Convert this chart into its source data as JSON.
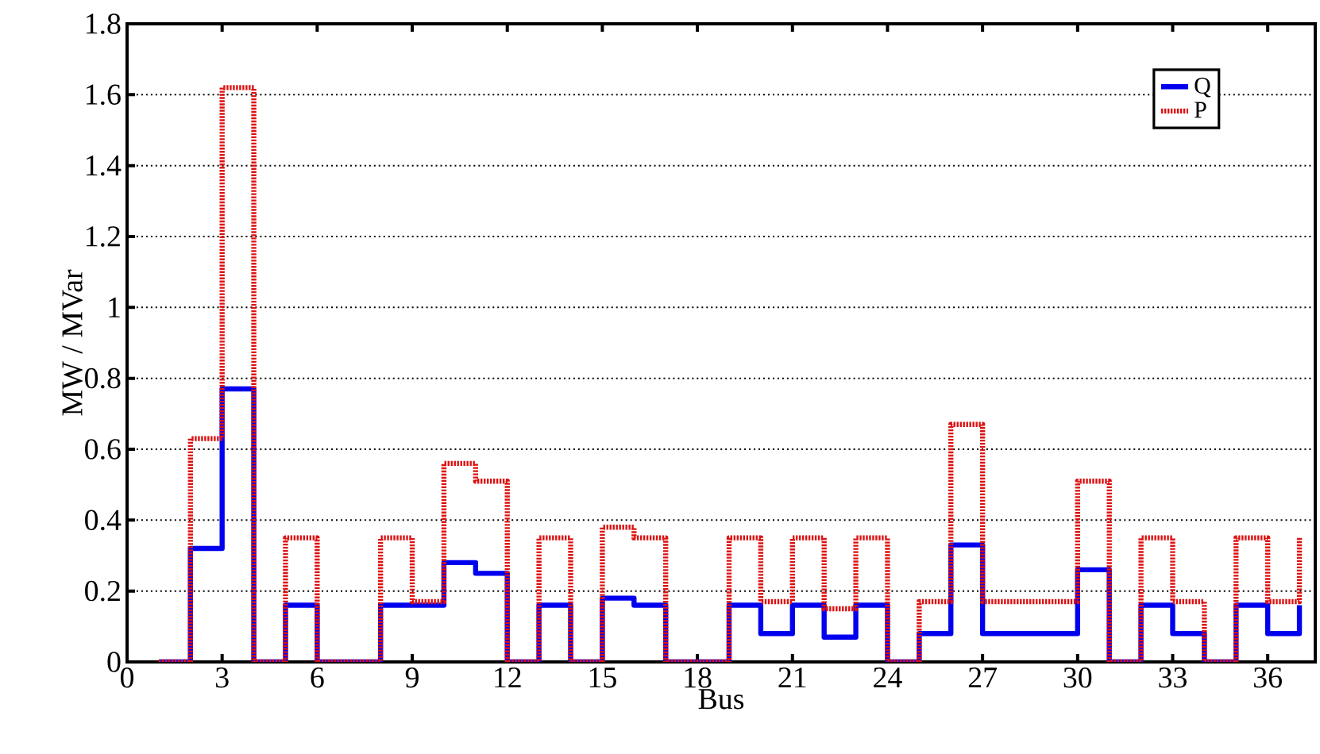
{
  "chart_data": {
    "type": "step",
    "xlabel": "Bus",
    "ylabel": "MW / MVar",
    "x": [
      1,
      2,
      3,
      4,
      5,
      6,
      7,
      8,
      9,
      10,
      11,
      12,
      13,
      14,
      15,
      16,
      17,
      18,
      19,
      20,
      21,
      22,
      23,
      24,
      25,
      26,
      27,
      28,
      29,
      30,
      31,
      32,
      33,
      34,
      35,
      36,
      37
    ],
    "series": [
      {
        "name": "Q",
        "color": "#0000ee",
        "line_style": "solid",
        "values": [
          0,
          0.32,
          0.77,
          0,
          0.16,
          0,
          0,
          0.16,
          0.16,
          0.28,
          0.25,
          0,
          0.16,
          0,
          0.18,
          0.16,
          0,
          0,
          0.16,
          0.08,
          0.16,
          0.07,
          0.16,
          0,
          0.08,
          0.33,
          0.08,
          0.08,
          0.08,
          0.26,
          0,
          0.16,
          0.08,
          0,
          0.16,
          0.08,
          0.16
        ]
      },
      {
        "name": "P",
        "color": "#dd1111",
        "line_style": "dotted",
        "values": [
          0,
          0.63,
          1.62,
          0,
          0.35,
          0,
          0,
          0.35,
          0.17,
          0.56,
          0.51,
          0,
          0.35,
          0,
          0.38,
          0.35,
          0,
          0,
          0.35,
          0.17,
          0.35,
          0.15,
          0.35,
          0,
          0.17,
          0.67,
          0.17,
          0.17,
          0.17,
          0.51,
          0,
          0.35,
          0.17,
          0,
          0.35,
          0.17,
          0.35
        ]
      }
    ],
    "xlim": [
      0,
      37.5
    ],
    "xticks": [
      0,
      3,
      6,
      9,
      12,
      15,
      18,
      21,
      24,
      27,
      30,
      33,
      36
    ],
    "ylim": [
      0,
      1.8
    ],
    "yticks": [
      0,
      {
        "value": 0.2,
        "label": "0.2"
      },
      {
        "value": 0.4,
        "label": "0.4"
      },
      {
        "value": 0.6,
        "label": "0.6"
      },
      {
        "value": 0.8,
        "label": "0.8"
      },
      1,
      {
        "value": 1.2,
        "label": "1.2"
      },
      {
        "value": 1.4,
        "label": "1.4"
      },
      {
        "value": 1.6,
        "label": "1.6"
      },
      {
        "value": 1.8,
        "label": "1.8"
      }
    ],
    "grid": "y",
    "legend": "top right"
  }
}
